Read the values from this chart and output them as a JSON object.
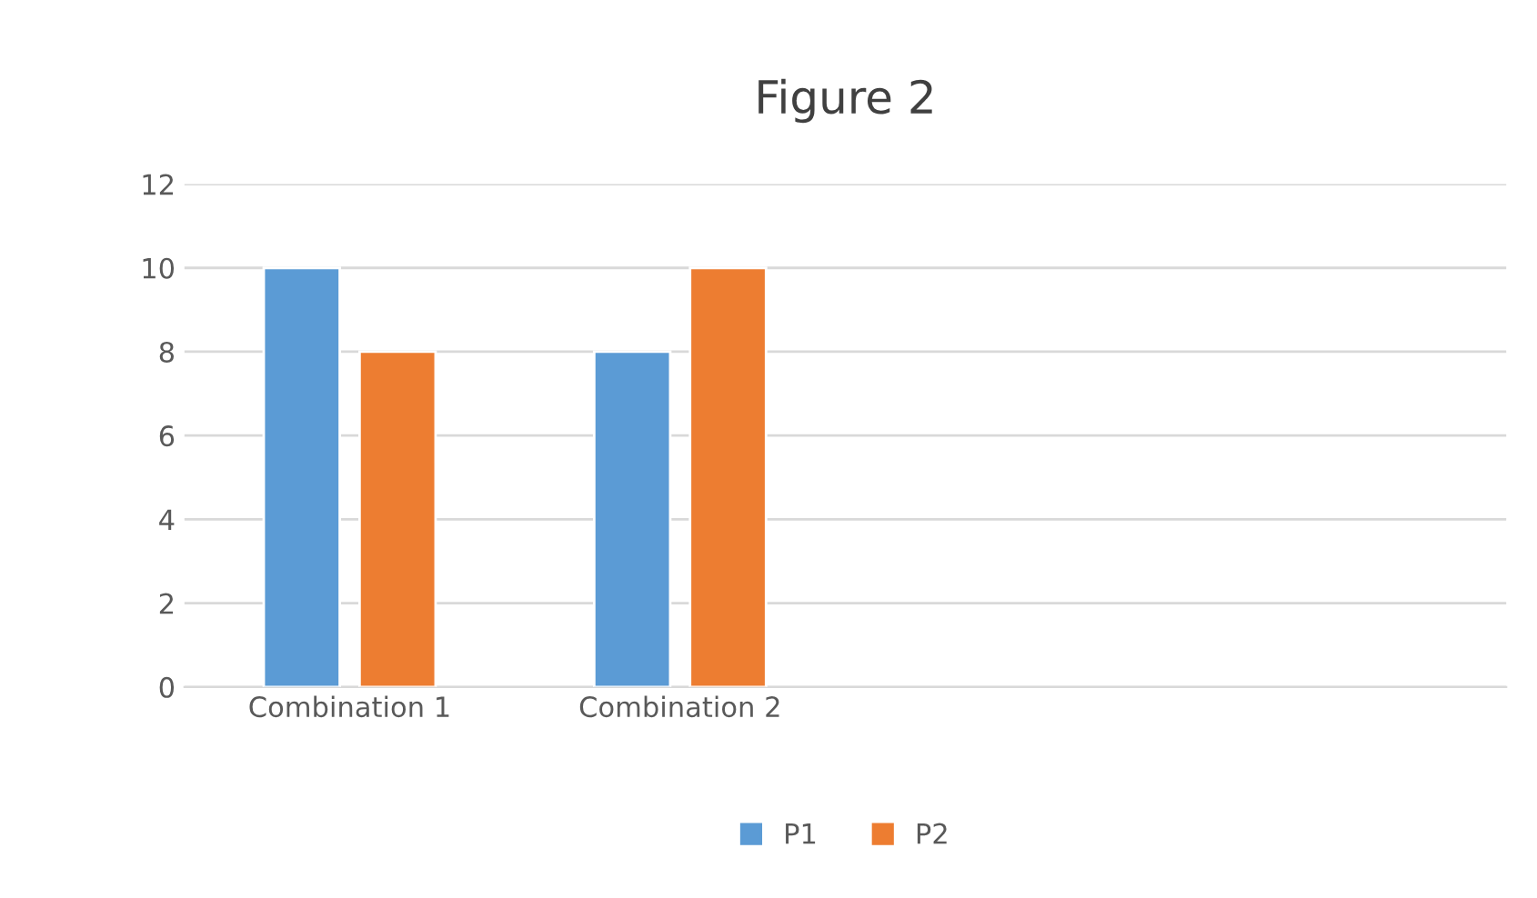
{
  "chart_data": {
    "type": "bar",
    "title": "Figure 2",
    "categories": [
      "Combination 1",
      "Combination 2",
      null,
      null
    ],
    "series": [
      {
        "name": "P1",
        "color": "#5b9bd5",
        "values": [
          10,
          8,
          null,
          null
        ]
      },
      {
        "name": "P2",
        "color": "#ed7d31",
        "values": [
          8,
          10,
          null,
          null
        ]
      }
    ],
    "ylim": [
      0,
      12
    ],
    "yticks": [
      0,
      2,
      4,
      6,
      8,
      10,
      12
    ],
    "grid": "y",
    "legend": "bottom"
  }
}
